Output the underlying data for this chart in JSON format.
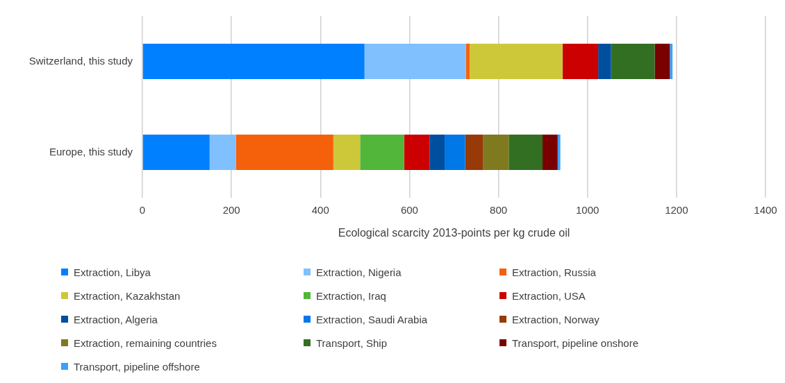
{
  "chart_data": {
    "type": "bar",
    "orientation": "horizontal",
    "stacked": true,
    "xlabel": "Ecological scarcity 2013-points per kg crude oil",
    "categories": [
      "Switzerland, this study",
      "Europe, this study"
    ],
    "xlim": [
      0,
      1400
    ],
    "xticks": [
      0,
      200,
      400,
      600,
      800,
      1000,
      1200,
      1400
    ],
    "grid": "x",
    "legend": "bottom",
    "series": [
      {
        "name": "Extraction, Libya",
        "color": "#0080ff",
        "values": [
          499,
          151
        ]
      },
      {
        "name": "Extraction, Nigeria",
        "color": "#80c0ff",
        "values": [
          228,
          59
        ]
      },
      {
        "name": "Extraction, Russia",
        "color": "#f5600a",
        "values": [
          8,
          219
        ]
      },
      {
        "name": "Extraction, Kazakhstan",
        "color": "#cdc83a",
        "values": [
          209,
          60
        ]
      },
      {
        "name": "Extraction, Iraq",
        "color": "#52b63a",
        "values": [
          0,
          99
        ]
      },
      {
        "name": "Extraction, USA",
        "color": "#cc0000",
        "values": [
          80,
          57
        ]
      },
      {
        "name": "Extraction, Algeria",
        "color": "#004f9f",
        "values": [
          29,
          34
        ]
      },
      {
        "name": "Extraction, Saudi Arabia",
        "color": "#0078e8",
        "values": [
          0,
          46
        ]
      },
      {
        "name": "Extraction, Norway",
        "color": "#973a08",
        "values": [
          0,
          40
        ]
      },
      {
        "name": "Extraction, remaining countries",
        "color": "#7f7a20",
        "values": [
          0,
          58
        ]
      },
      {
        "name": "Transport, Ship",
        "color": "#326f22",
        "values": [
          98,
          76
        ]
      },
      {
        "name": "Transport, pipeline onshore",
        "color": "#7a0000",
        "values": [
          34,
          34
        ]
      },
      {
        "name": "Transport, pipeline offshore",
        "color": "#3ba0ff",
        "values": [
          6,
          6
        ]
      }
    ]
  }
}
